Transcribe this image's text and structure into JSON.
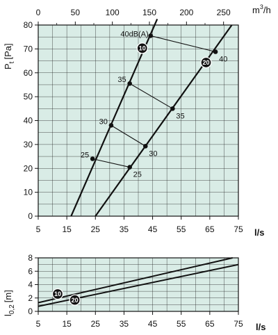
{
  "chart_data": [
    {
      "type": "line",
      "panel": "pressure",
      "x": {
        "label": "l/s",
        "range": [
          5,
          75
        ],
        "ticks": [
          5,
          15,
          25,
          35,
          45,
          55,
          65,
          75
        ]
      },
      "x_top": {
        "label": "m³/h",
        "range": [
          0,
          270
        ],
        "ticks": [
          0,
          50,
          100,
          150,
          200,
          250
        ]
      },
      "y": {
        "label": "Pt [Pa]",
        "range": [
          0,
          80
        ],
        "ticks": [
          0,
          10,
          20,
          30,
          40,
          50,
          60,
          70,
          80
        ]
      },
      "grid": true,
      "background": "#d9ece6",
      "series": [
        {
          "name": "10",
          "points": [
            [
              16.5,
              0
            ],
            [
              45.7,
              80
            ]
          ]
        },
        {
          "name": "20",
          "points": [
            [
              25,
              0
            ],
            [
              72.7,
              80
            ]
          ]
        }
      ],
      "sound_lines": [
        {
          "label": "25",
          "p10": [
            24,
            24
          ],
          "p20": [
            37,
            20.5
          ]
        },
        {
          "label": "30",
          "p10": [
            30.5,
            38
          ],
          "p20": [
            42.5,
            29.3
          ]
        },
        {
          "label": "35",
          "p10": [
            37,
            55.5
          ],
          "p20": [
            52,
            45
          ]
        },
        {
          "label": "40dB(A)",
          "p10": [
            44.3,
            75.5
          ],
          "p20": [
            67,
            68.8
          ]
        }
      ],
      "sound_labels_20": [
        "25",
        "30",
        "35",
        "40"
      ]
    },
    {
      "type": "line",
      "panel": "throw",
      "x": {
        "label": "l/s",
        "range": [
          5,
          75
        ],
        "ticks": [
          5,
          15,
          25,
          35,
          45,
          55,
          65,
          75
        ]
      },
      "y": {
        "label": "l0,2 [m]",
        "range": [
          0,
          8
        ],
        "ticks": [
          0,
          2,
          4,
          6,
          8
        ]
      },
      "grid": true,
      "background": "#d9ece6",
      "series": [
        {
          "name": "10",
          "points": [
            [
              5,
              1.3
            ],
            [
              75,
              8.2
            ]
          ]
        },
        {
          "name": "20",
          "points": [
            [
              5,
              0.75
            ],
            [
              75,
              7.0
            ]
          ]
        }
      ]
    }
  ],
  "labels": {
    "top_unit": "m",
    "top_unit_sup": "3",
    "top_unit_tail": "/h",
    "bottom_unit": "l/s",
    "y1_main": "P",
    "y1_sub": "t",
    "y1_tail": "[Pa]",
    "y2_main": "l",
    "y2_sub": "0,2",
    "y2_tail": "[m]",
    "badge_10": "10",
    "badge_20": "20"
  }
}
